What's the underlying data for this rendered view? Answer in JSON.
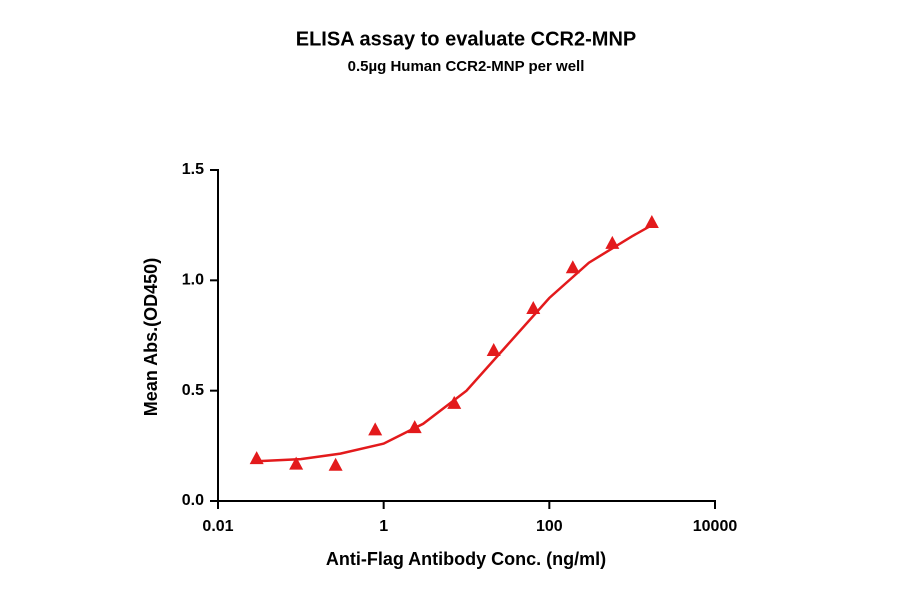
{
  "chart_data": {
    "type": "scatter",
    "title": "ELISA assay to evaluate CCR2-MNP",
    "subtitle": "0.5µg Human CCR2-MNP per well",
    "x_label": "Anti-Flag Antibody Conc. (ng/ml)",
    "y_label": "Mean Abs.(OD450)",
    "x_scale": "log",
    "xlim": [
      0.01,
      10000
    ],
    "xticks": [
      0.01,
      1,
      100,
      10000
    ],
    "ylim": [
      0,
      1.5
    ],
    "yticks": [
      {
        "value": 0,
        "label": "0.0"
      },
      {
        "value": 0.5,
        "label": "0.5"
      },
      {
        "value": 1,
        "label": "1.0"
      },
      {
        "value": 1.5,
        "label": "1.5"
      }
    ],
    "series": [
      {
        "kind": "points",
        "marker": "triangle",
        "color": "#e31a1c",
        "x": [
          0.0293,
          0.0878,
          0.263,
          0.79,
          2.37,
          7.11,
          21.3,
          64,
          192,
          576,
          1728
        ],
        "values": [
          0.19,
          0.165,
          0.16,
          0.32,
          0.33,
          0.44,
          0.68,
          0.87,
          1.055,
          1.165,
          1.26
        ]
      },
      {
        "kind": "curve",
        "color": "#e31a1c",
        "x": [
          0.0293,
          0.1,
          0.3,
          1,
          3,
          10,
          30,
          100,
          300,
          1000,
          1728
        ],
        "values": [
          0.18,
          0.19,
          0.215,
          0.26,
          0.35,
          0.5,
          0.7,
          0.92,
          1.08,
          1.2,
          1.25
        ]
      }
    ]
  }
}
